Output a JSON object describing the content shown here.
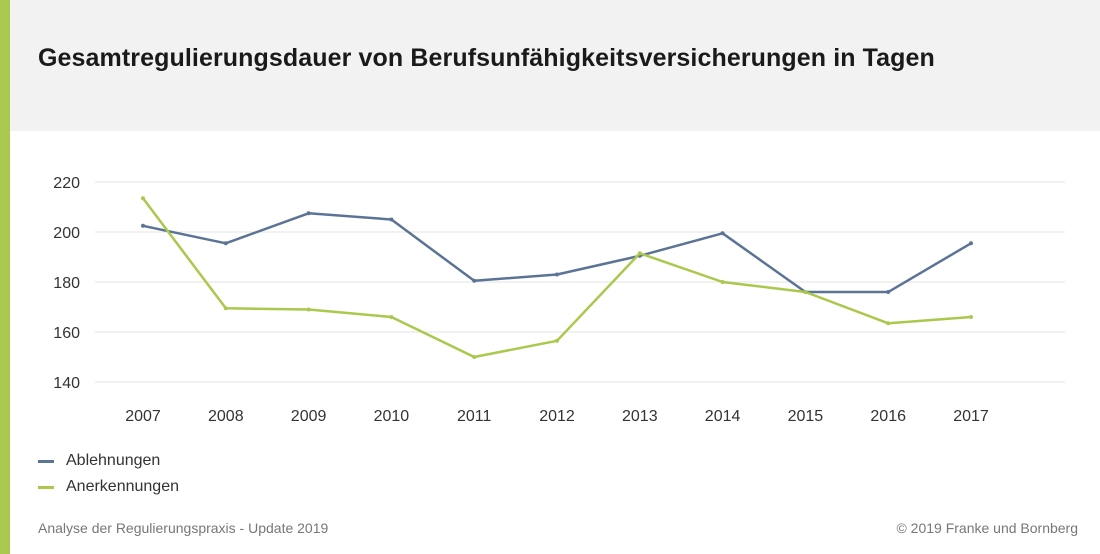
{
  "page": {
    "title": "Gesamtregulierungsdauer von Berufsunfähigkeitsversicherungen in Tagen",
    "footer_left": "Analyse der Regulierungspraxis - Update 2019",
    "footer_right": "© 2019 Franke und Bornberg",
    "accent_color": "#a8c94e",
    "header_bg": "#f2f2f2"
  },
  "chart_data": {
    "type": "line",
    "title": "Gesamtregulierungsdauer von Berufsunfähigkeitsversicherungen in Tagen",
    "xlabel": "",
    "ylabel": "",
    "x": [
      "2007",
      "2008",
      "2009",
      "2010",
      "2011",
      "2012",
      "2013",
      "2014",
      "2015",
      "2016",
      "2017"
    ],
    "ylim": [
      140,
      220
    ],
    "yticks": [
      140,
      160,
      180,
      200,
      220
    ],
    "grid": true,
    "legend_position": "bottom-left",
    "series": [
      {
        "name": "Ablehnungen",
        "color": "#5b7496",
        "values": [
          202.5,
          195.5,
          207.5,
          205,
          180.5,
          183,
          190.5,
          199.5,
          176,
          176,
          195.5
        ]
      },
      {
        "name": "Anerkennungen",
        "color": "#aac84c",
        "values": [
          213.5,
          169.5,
          169,
          166,
          150,
          156.5,
          191.5,
          180,
          176,
          163.5,
          166
        ]
      }
    ]
  }
}
